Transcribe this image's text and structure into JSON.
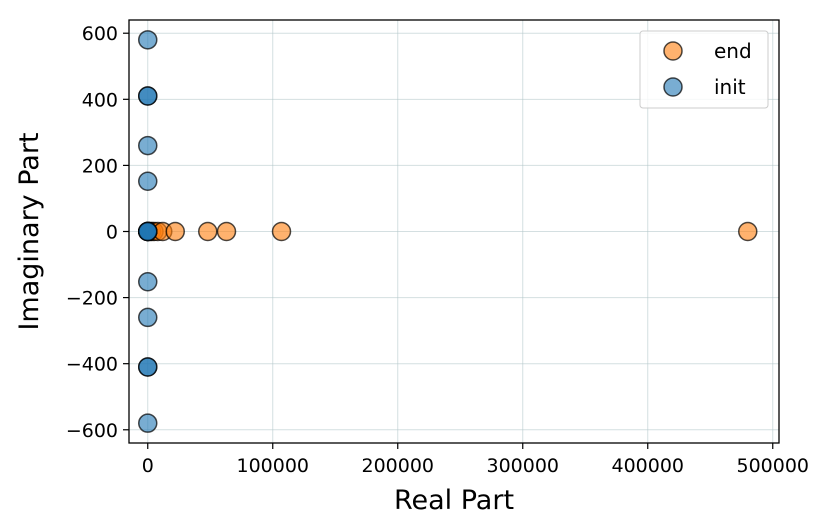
{
  "chart_data": {
    "type": "scatter",
    "xlabel": "Real Part",
    "ylabel": "Imaginary Part",
    "xlim": [
      -15000,
      505000
    ],
    "ylim": [
      -640,
      640
    ],
    "xticks": [
      0,
      100000,
      200000,
      300000,
      400000,
      500000
    ],
    "xtick_labels": [
      "0",
      "100000",
      "200000",
      "300000",
      "400000",
      "500000"
    ],
    "yticks": [
      -600,
      -400,
      -200,
      0,
      200,
      400,
      600
    ],
    "ytick_labels": [
      "−600",
      "−400",
      "−200",
      "0",
      "200",
      "400",
      "600"
    ],
    "grid": true,
    "legend_position": "top-right",
    "series": [
      {
        "name": "end",
        "color": "#ff7f0e",
        "points": [
          [
            0,
            0
          ],
          [
            1500,
            0
          ],
          [
            3000,
            0
          ],
          [
            5000,
            0
          ],
          [
            8000,
            0
          ],
          [
            12000,
            0
          ],
          [
            22000,
            0
          ],
          [
            48000,
            0
          ],
          [
            63000,
            0
          ],
          [
            107000,
            0
          ],
          [
            480000,
            0
          ]
        ]
      },
      {
        "name": "init",
        "color": "#1f77b4",
        "points": [
          [
            0,
            580
          ],
          [
            0,
            410
          ],
          [
            0,
            410
          ],
          [
            0,
            260
          ],
          [
            0,
            152
          ],
          [
            0,
            0
          ],
          [
            0,
            0
          ],
          [
            0,
            0
          ],
          [
            0,
            0
          ],
          [
            0,
            0
          ],
          [
            0,
            -152
          ],
          [
            0,
            -260
          ],
          [
            0,
            -410
          ],
          [
            0,
            -410
          ],
          [
            0,
            -580
          ]
        ]
      }
    ]
  }
}
